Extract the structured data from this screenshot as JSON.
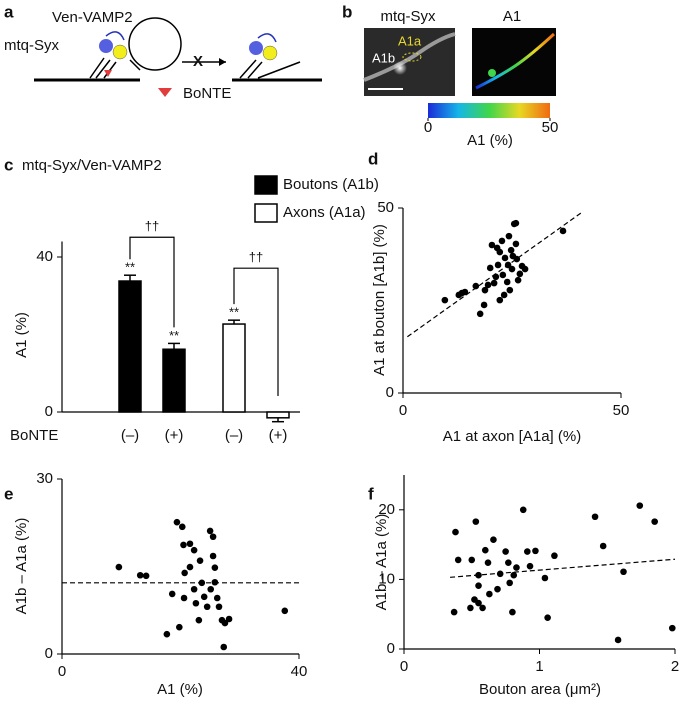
{
  "panel_a": {
    "label": "a",
    "vesicle": "Ven-VAMP2",
    "syntaxin": "mtq-Syx",
    "toxin": "BoNTE",
    "block": "X"
  },
  "panel_b": {
    "label": "b",
    "left_title": "mtq-Syx",
    "right_title": "A1",
    "axon_roi": "A1a",
    "bouton_roi": "A1b",
    "colorbar": {
      "label": "A1 (%)",
      "lim": [
        0,
        50
      ],
      "ticks": [
        0,
        50
      ]
    }
  },
  "chart_data": [
    {
      "type": "bar",
      "panel": "c",
      "title": "mtq-Syx/Ven-VAMP2",
      "ylabel": "A1 (%)",
      "xrow_label": "BoNTE",
      "categories": [
        "(–)",
        "(+)",
        "(–)",
        "(+)"
      ],
      "series": [
        {
          "name": "Boutons (A1b)",
          "color": "#000000",
          "values": [
            33.8,
            16.2,
            null,
            null
          ],
          "errors": [
            1.5,
            1.5,
            null,
            null
          ]
        },
        {
          "name": "Axons (A1a)",
          "color": "#ffffff",
          "values": [
            null,
            null,
            22.7,
            -1.5
          ],
          "errors": [
            null,
            null,
            1.0,
            1.0
          ]
        }
      ],
      "significance": [
        "**",
        "**",
        "**",
        null
      ],
      "bracket_labels": [
        "††",
        "††"
      ],
      "ylim": [
        0,
        44
      ],
      "yticks": [
        0,
        40
      ]
    },
    {
      "type": "scatter",
      "panel": "d",
      "xlabel": "A1 at axon [A1a] (%)",
      "ylabel": "A1 at bouton [A1b] (%)",
      "color": "#000000",
      "x": [
        9.6,
        12.8,
        13.5,
        14.2,
        16.7,
        17.7,
        18.6,
        18.8,
        19.5,
        20.0,
        20.4,
        20.9,
        21.3,
        21.6,
        21.8,
        22.2,
        22.2,
        22.7,
        22.9,
        23.2,
        23.4,
        23.9,
        24.1,
        24.3,
        24.5,
        24.8,
        25.0,
        25.2,
        25.5,
        25.9,
        25.9,
        26.1,
        26.4,
        26.8,
        27.3,
        28.0,
        36.7
      ],
      "values": [
        25.1,
        26.5,
        27.0,
        27.3,
        28.9,
        21.4,
        23.8,
        27.8,
        29.2,
        33.8,
        40.0,
        29.7,
        31.4,
        39.2,
        34.6,
        38.1,
        25.1,
        41.1,
        31.9,
        26.5,
        36.5,
        30.0,
        34.6,
        42.4,
        27.8,
        38.6,
        33.5,
        37.0,
        45.7,
        45.9,
        40.3,
        36.2,
        30.5,
        32.2,
        34.3,
        33.5,
        43.8
      ],
      "fit": {
        "x": [
          1,
          41
        ],
        "y": [
          15.2,
          48.8
        ]
      },
      "xlim": [
        0,
        50
      ],
      "ylim": [
        0,
        50
      ],
      "xticks": [
        0,
        50
      ],
      "yticks": [
        0,
        50
      ]
    },
    {
      "type": "scatter",
      "panel": "e",
      "xlabel": "A1 (%)",
      "ylabel": "A1b – A1a (%)",
      "color": "#000000",
      "x": [
        9.6,
        13.2,
        14.2,
        19.4,
        20.3,
        20.5,
        21.6,
        20.6,
        19.8,
        17.7,
        20.7,
        21.6,
        22.3,
        22.3,
        22.6,
        23.1,
        23.3,
        23.6,
        24.0,
        24.5,
        25.0,
        25.1,
        25.5,
        25.5,
        25.8,
        25.8,
        26.2,
        26.5,
        27.0,
        27.5,
        28.2,
        27.3,
        37.6,
        18.6
      ],
      "values": [
        14.9,
        13.5,
        13.4,
        22.6,
        21.8,
        18.7,
        18.9,
        9.6,
        4.6,
        3.4,
        13.9,
        14.9,
        17.8,
        11.1,
        8.7,
        5.8,
        16.0,
        12.2,
        9.8,
        8.1,
        21.1,
        11.1,
        20.1,
        16.8,
        14.8,
        12.3,
        9.6,
        8.1,
        5.8,
        5.3,
        6.0,
        1.2,
        7.4,
        10.3
      ],
      "hline": 12.2,
      "xlim": [
        0,
        40
      ],
      "ylim": [
        0,
        30
      ],
      "xticks": [
        0,
        40
      ],
      "yticks": [
        0,
        30
      ]
    },
    {
      "type": "scatter",
      "panel": "f",
      "xlabel": "Bouton area (μm²)",
      "ylabel": "A1b – A1a (%)",
      "color": "#000000",
      "x": [
        0.38,
        0.37,
        0.4,
        0.49,
        0.5,
        0.52,
        0.53,
        0.55,
        0.55,
        0.55,
        0.58,
        0.6,
        0.62,
        0.63,
        0.66,
        0.69,
        0.71,
        0.75,
        0.77,
        0.78,
        0.8,
        0.81,
        0.83,
        0.88,
        0.91,
        0.93,
        0.97,
        1.04,
        1.06,
        1.11,
        1.41,
        1.47,
        1.62,
        1.58,
        1.74,
        1.85,
        1.98
      ],
      "values": [
        16.8,
        5.3,
        12.8,
        5.9,
        12.8,
        7.1,
        18.3,
        9.1,
        10.6,
        6.6,
        5.9,
        14.2,
        12.4,
        7.9,
        15.7,
        8.6,
        10.8,
        14.0,
        12.4,
        9.5,
        5.3,
        10.6,
        11.7,
        20.0,
        14.0,
        11.9,
        14.1,
        10.2,
        4.5,
        13.4,
        19.0,
        14.8,
        11.1,
        1.3,
        20.6,
        18.3,
        3.0
      ],
      "fit": {
        "x": [
          0.34,
          2.0
        ],
        "y": [
          10.3,
          12.9
        ]
      },
      "xlim": [
        0,
        2
      ],
      "ylim": [
        0,
        25
      ],
      "xticks": [
        0,
        1,
        2
      ],
      "yticks": [
        0,
        10,
        20
      ]
    }
  ]
}
